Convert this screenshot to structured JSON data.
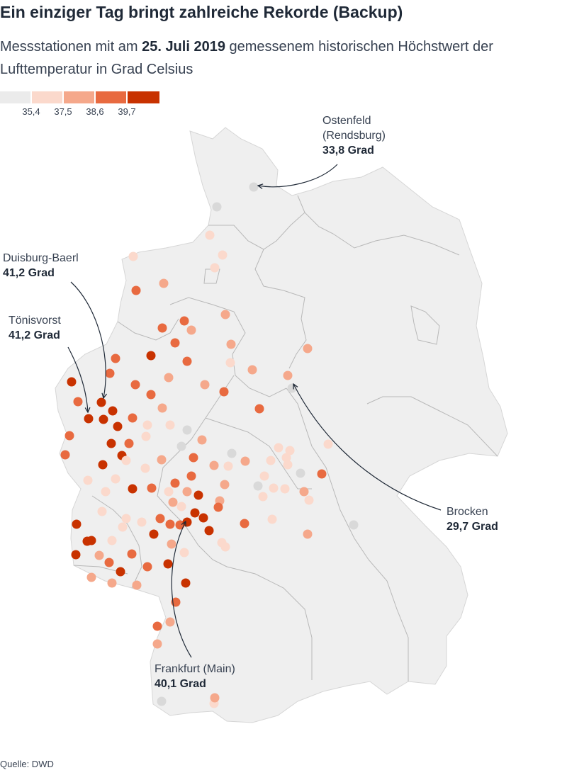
{
  "title": "Ein einziger Tag bringt zahlreiche Rekorde (Backup)",
  "subtitle": {
    "pre": "Messstationen mit am ",
    "date": "25. Juli 2019",
    "post": " gemessenem historischen Höchstwert der Lufttemperatur in Grad Celsius"
  },
  "legend": {
    "colors": [
      "#ebebeb",
      "#fbd9cc",
      "#f5a88b",
      "#e86a40",
      "#c83200"
    ],
    "ticks": [
      "35,4",
      "37,5",
      "38,6",
      "39,7"
    ]
  },
  "source": "Quelle: DWD",
  "annotations": {
    "ostenfeld": {
      "name": "Ostenfeld (Rendsburg)",
      "name_line1": "Ostenfeld",
      "name_line2": "(Rendsburg)",
      "value": "33,8 Grad"
    },
    "duisburg": {
      "name": "Duisburg-Baerl",
      "value": "41,2 Grad"
    },
    "toenisvorst": {
      "name": "Tönisvorst",
      "value": "41,2 Grad"
    },
    "brocken": {
      "name": "Brocken",
      "value": "29,7 Grad"
    },
    "frankfurt": {
      "name": "Frankfurt (Main)",
      "value": "40,1 Grad"
    }
  },
  "map": {
    "land_color": "#efefef",
    "border_color": "#b8b8b8"
  }
}
